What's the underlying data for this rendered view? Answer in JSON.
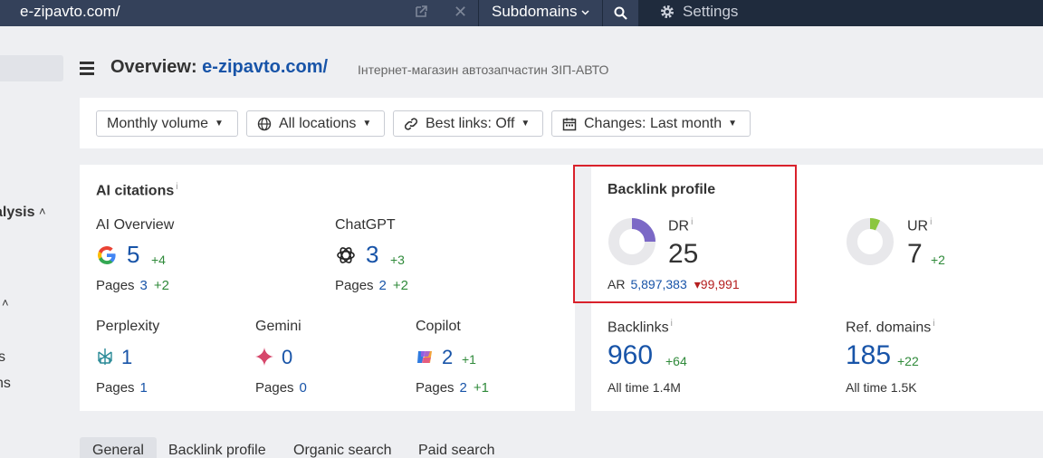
{
  "topbar": {
    "url": "e-zipavto.com/",
    "subdomains_label": "Subdomains",
    "settings_label": "Settings"
  },
  "sidebar": {
    "section_label": "alysis",
    "item_s": "s",
    "item_ns": "ns"
  },
  "header": {
    "title_prefix": "Overview:",
    "domain": "e-zipavto.com/",
    "subtitle": "Інтернет-магазин автозапчастин ЗІП-АВТО"
  },
  "filters": [
    {
      "label": "Monthly volume",
      "icon": "none"
    },
    {
      "label": "All locations",
      "icon": "globe-icon"
    },
    {
      "label": "Best links: Off",
      "icon": "link-icon"
    },
    {
      "label": "Changes: Last month",
      "icon": "calendar-icon"
    }
  ],
  "ai_citations": {
    "title": "AI citations",
    "info": "i",
    "ai_overview": {
      "label": "AI Overview",
      "value": "5",
      "delta": "+4",
      "pages_label": "Pages",
      "pages": "3",
      "pages_delta": "+2"
    },
    "chatgpt": {
      "label": "ChatGPT",
      "value": "3",
      "delta": "+3",
      "pages_label": "Pages",
      "pages": "2",
      "pages_delta": "+2"
    },
    "perplexity": {
      "label": "Perplexity",
      "value": "1",
      "pages_label": "Pages",
      "pages": "1"
    },
    "gemini": {
      "label": "Gemini",
      "value": "0",
      "pages_label": "Pages",
      "pages": "0"
    },
    "copilot": {
      "label": "Copilot",
      "value": "2",
      "delta": "+1",
      "pages_label": "Pages",
      "pages": "2",
      "pages_delta": "+1"
    }
  },
  "backlink_profile": {
    "title": "Backlink profile",
    "info": "i",
    "dr": {
      "label": "DR",
      "value": "25",
      "fraction": 0.25,
      "color": "#7b68c6"
    },
    "ar": {
      "label": "AR",
      "value": "5,897,383",
      "delta": "99,991"
    },
    "ur": {
      "label": "UR",
      "value": "7",
      "delta": "+2",
      "fraction": 0.07,
      "color": "#8cc63f"
    },
    "backlinks": {
      "label": "Backlinks",
      "value": "960",
      "delta": "+64",
      "all_time_label": "All time",
      "all_time": "1.4M"
    },
    "ref_domains": {
      "label": "Ref. domains",
      "value": "185",
      "delta": "+22",
      "all_time_label": "All time",
      "all_time": "1.5K"
    }
  },
  "tabs": [
    "General",
    "Backlink profile",
    "Organic search",
    "Paid search"
  ],
  "colors": {
    "topbar": "#1f2b3d",
    "link": "#1854a8",
    "positive": "#2f8a3a",
    "negative": "#b51f1f",
    "highlight": "#d9212b"
  }
}
